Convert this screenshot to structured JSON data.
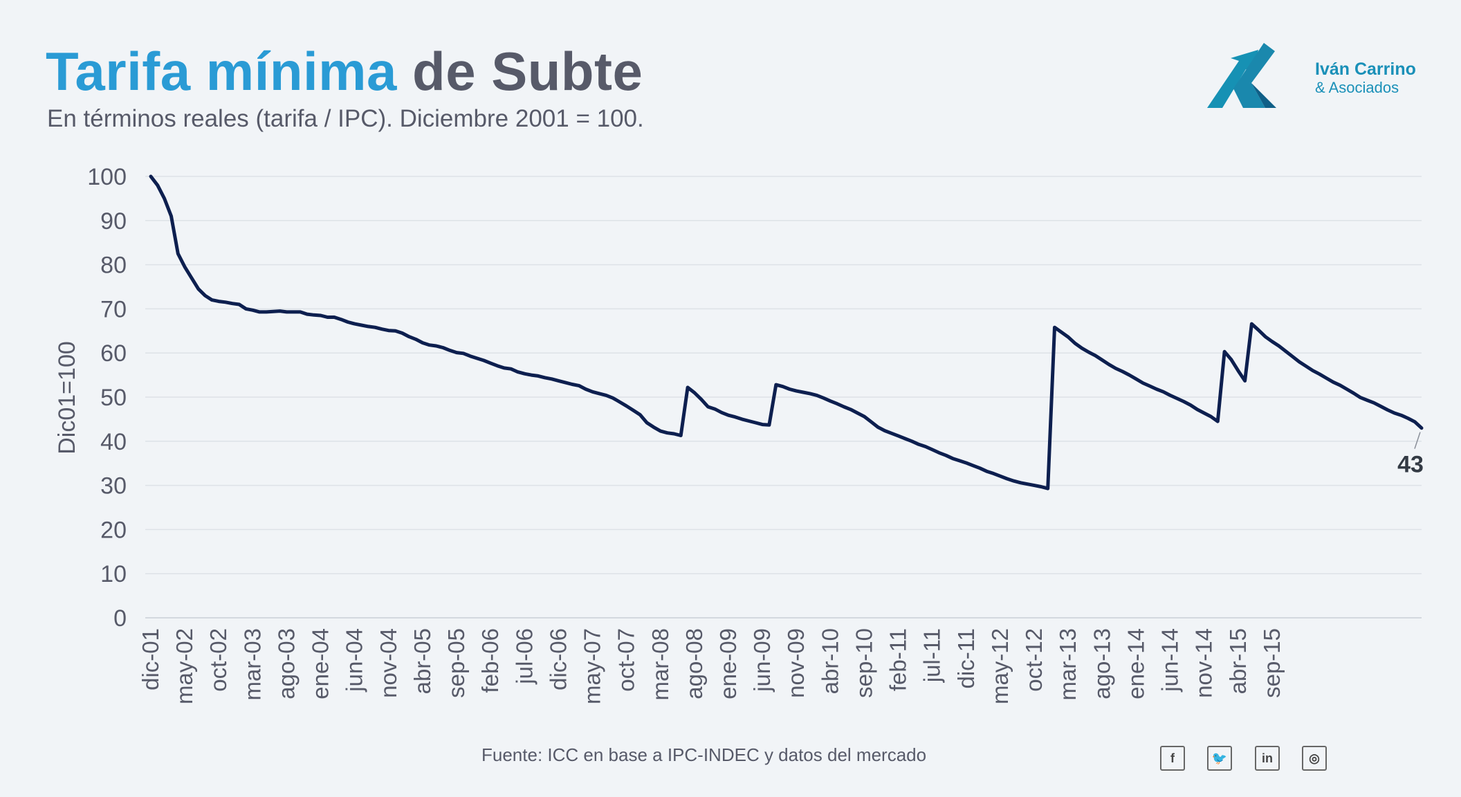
{
  "header": {
    "title_part1": "Tarifa mínima",
    "title_part2": "de Subte",
    "subtitle": "En términos reales (tarifa / IPC). Diciembre 2001 = 100."
  },
  "logo": {
    "name": "Iván Carrino",
    "sub": "& Asociados"
  },
  "footer": {
    "source": "Fuente: ICC en base a IPC-INDEC y datos del mercado"
  },
  "social": [
    {
      "icon": "facebook-icon",
      "glyph": "f"
    },
    {
      "icon": "twitter-icon",
      "glyph": "🐦"
    },
    {
      "icon": "linkedin-icon",
      "glyph": "in"
    },
    {
      "icon": "instagram-icon",
      "glyph": "◎"
    }
  ],
  "colors": {
    "title_accent": "#2a9bd5",
    "title_dark": "#575a69",
    "line": "#0d1f4f",
    "grid": "#dde2e7",
    "background": "#f1f4f7"
  },
  "chart_data": {
    "type": "line",
    "ylabel": "Dic01=100",
    "ylim": [
      0,
      100
    ],
    "yticks": [
      0,
      10,
      20,
      30,
      40,
      50,
      60,
      70,
      80,
      90,
      100
    ],
    "grid": true,
    "x_start": "dic-01",
    "x_end": "dic-15",
    "xtick_labels": [
      "dic-01",
      "may-02",
      "oct-02",
      "mar-03",
      "ago-03",
      "ene-04",
      "jun-04",
      "nov-04",
      "abr-05",
      "sep-05",
      "feb-06",
      "jul-06",
      "dic-06",
      "may-07",
      "oct-07",
      "mar-08",
      "ago-08",
      "ene-09",
      "jun-09",
      "nov-09",
      "abr-10",
      "sep-10",
      "feb-11",
      "jul-11",
      "dic-11",
      "may-12",
      "oct-12",
      "mar-13",
      "ago-13",
      "ene-14",
      "jun-14",
      "nov-14",
      "abr-15",
      "sep-15"
    ],
    "series": [
      {
        "values": [
          100,
          98,
          95,
          91,
          82.5,
          79.5,
          77,
          74.5,
          73,
          72,
          71.7,
          71.5,
          71.2,
          71,
          70,
          69.7,
          69.3,
          69.3,
          69.4,
          69.5,
          69.3,
          69.3,
          69.3,
          68.8,
          68.6,
          68.5,
          68.1,
          68.1,
          67.6,
          67,
          66.6,
          66.3,
          66,
          65.8,
          65.4,
          65.1,
          65,
          64.5,
          63.7,
          63.1,
          62.3,
          61.8,
          61.6,
          61.2,
          60.6,
          60.1,
          59.9,
          59.3,
          58.8,
          58.3,
          57.7,
          57.1,
          56.6,
          56.4,
          55.7,
          55.3,
          55,
          54.8,
          54.4,
          54.1,
          53.7,
          53.3,
          52.9,
          52.6,
          51.8,
          51.2,
          50.8,
          50.4,
          49.8,
          48.9,
          48,
          47,
          46,
          44.2,
          43.2,
          42.3,
          41.9,
          41.7,
          41.3,
          52.2,
          51,
          49.5,
          47.8,
          47.3,
          46.5,
          45.9,
          45.5,
          45,
          44.6,
          44.2,
          43.8,
          43.7,
          52.8,
          52.4,
          51.8,
          51.4,
          51.1,
          50.8,
          50.4,
          49.8,
          49.1,
          48.5,
          47.8,
          47.2,
          46.4,
          45.6,
          44.4,
          43.2,
          42.4,
          41.8,
          41.2,
          40.6,
          40,
          39.3,
          38.8,
          38.1,
          37.4,
          36.8,
          36.1,
          35.6,
          35.1,
          34.5,
          33.9,
          33.2,
          32.7,
          32.1,
          31.5,
          31,
          30.6,
          30.3,
          30,
          29.7,
          29.3,
          65.8,
          64.7,
          63.6,
          62.2,
          61.1,
          60.2,
          59.4,
          58.4,
          57.4,
          56.5,
          55.8,
          55,
          54.1,
          53.2,
          52.5,
          51.8,
          51.2,
          50.4,
          49.7,
          49,
          48.2,
          47.2,
          46.4,
          45.6,
          44.5,
          60.3,
          58.5,
          56,
          53.7,
          66.6,
          65.2,
          63.7,
          62.6,
          61.6,
          60.4,
          59.2,
          58,
          57,
          56,
          55.2,
          54.3,
          53.4,
          52.7,
          51.8,
          50.9,
          49.9,
          49.3,
          48.7,
          47.9,
          47.1,
          46.4,
          45.9,
          45.2,
          44.4,
          43
        ]
      }
    ],
    "last_value_label": "43"
  }
}
